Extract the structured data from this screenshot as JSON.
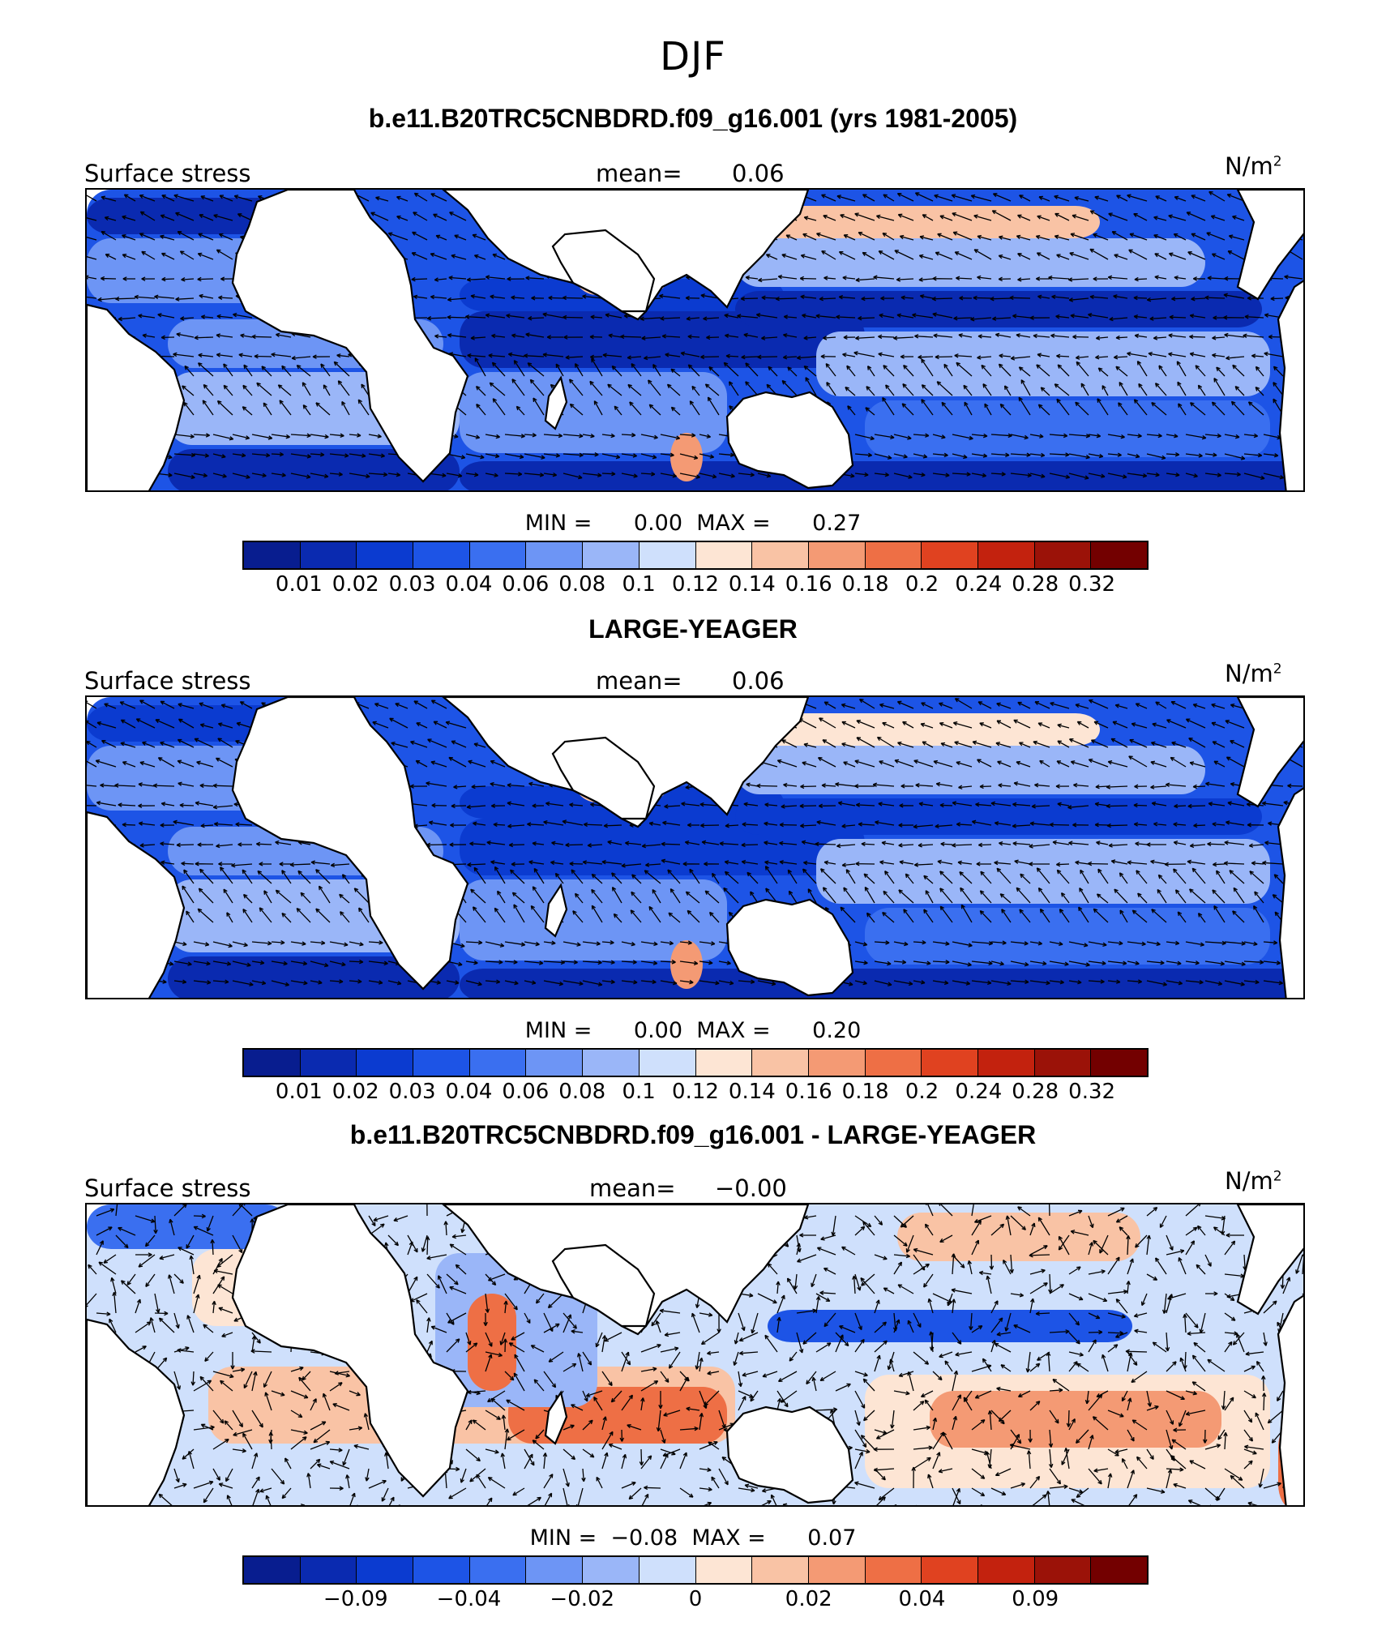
{
  "title": "DJF",
  "colors": {
    "scale": [
      "#081d8f",
      "#0a2ab0",
      "#0b3bd0",
      "#1d54e6",
      "#3a6ff0",
      "#6d95f5",
      "#9ab6f8",
      "#cfe0fc",
      "#fde5d4",
      "#f9c3a5",
      "#f49a74",
      "#ee6f45",
      "#e04220",
      "#c3220e",
      "#9b1208",
      "#730000"
    ],
    "land": "#ffffff",
    "coast": "#000000"
  },
  "panels": [
    {
      "title": "b.e11.B20TRC5CNBDRD.f09_g16.001 (yrs 1981-2005)",
      "field": "Surface stress",
      "mean_label": "mean=",
      "mean_value": "0.06",
      "unit": "N/m",
      "unit_exp": "2",
      "min_label": "MIN =",
      "min_value": "0.00",
      "max_label": "MAX =",
      "max_value": "0.27",
      "colorbar_ticks": [
        "0.01",
        "0.02",
        "0.03",
        "0.04",
        "0.06",
        "0.08",
        "0.1",
        "0.12",
        "0.14",
        "0.16",
        "0.18",
        "0.2",
        "0.24",
        "0.28",
        "0.32"
      ]
    },
    {
      "title": "LARGE-YEAGER",
      "field": "Surface stress",
      "mean_label": "mean=",
      "mean_value": "0.06",
      "unit": "N/m",
      "unit_exp": "2",
      "min_label": "MIN =",
      "min_value": "0.00",
      "max_label": "MAX =",
      "max_value": "0.20",
      "colorbar_ticks": [
        "0.01",
        "0.02",
        "0.03",
        "0.04",
        "0.06",
        "0.08",
        "0.1",
        "0.12",
        "0.14",
        "0.16",
        "0.18",
        "0.2",
        "0.24",
        "0.28",
        "0.32"
      ]
    },
    {
      "title": "b.e11.B20TRC5CNBDRD.f09_g16.001 - LARGE-YEAGER",
      "field": "Surface stress",
      "mean_label": "mean=",
      "mean_value": "−0.00",
      "unit": "N/m",
      "unit_exp": "2",
      "min_label": "MIN =",
      "min_value": "−0.08",
      "max_label": "MAX =",
      "max_value": "0.07",
      "colorbar_ticks": [
        "",
        "−0.09",
        "",
        "−0.04",
        "",
        "−0.02",
        "",
        "0",
        "",
        "0.02",
        "",
        "0.04",
        "",
        "0.09",
        ""
      ]
    }
  ]
}
